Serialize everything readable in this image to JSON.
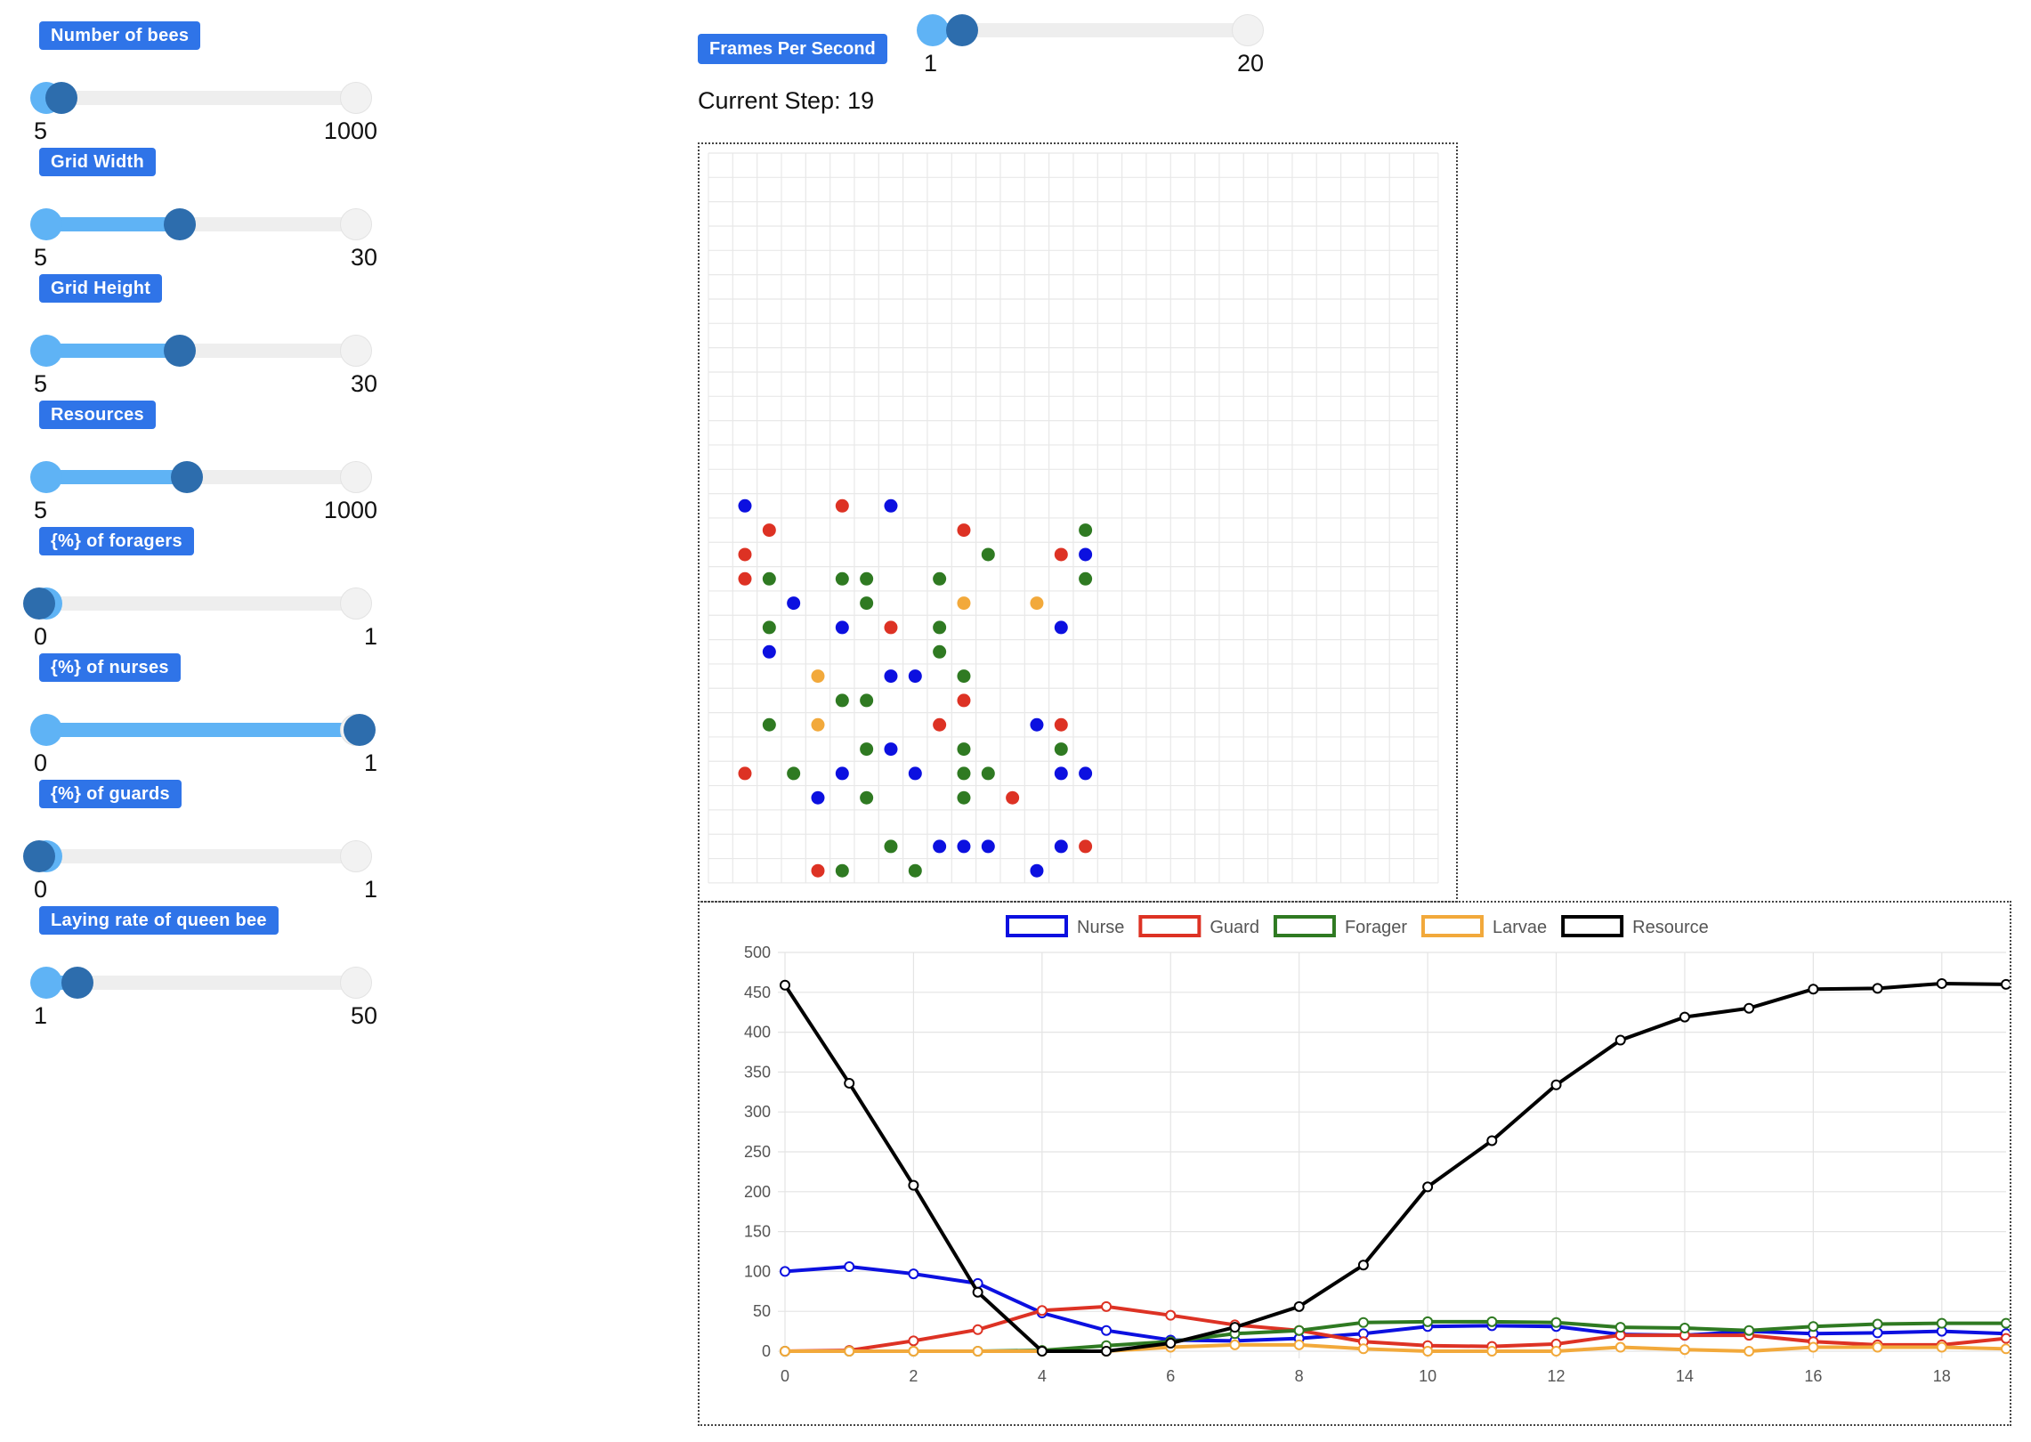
{
  "controls": [
    {
      "id": "bees",
      "label": "Number of bees",
      "min": "5",
      "max": "1000",
      "fraction": 0.07
    },
    {
      "id": "width",
      "label": "Grid Width",
      "min": "5",
      "max": "30",
      "fraction": 0.44
    },
    {
      "id": "height",
      "label": "Grid Height",
      "min": "5",
      "max": "30",
      "fraction": 0.44
    },
    {
      "id": "res",
      "label": "Resources",
      "min": "5",
      "max": "1000",
      "fraction": 0.46
    },
    {
      "id": "forag",
      "label": "{%} of foragers",
      "min": "0",
      "max": "1",
      "fraction": 0.0
    },
    {
      "id": "nurse",
      "label": "{%} of nurses",
      "min": "0",
      "max": "1",
      "fraction": 1.0
    },
    {
      "id": "guard",
      "label": "{%} of guards",
      "min": "0",
      "max": "1",
      "fraction": 0.0
    },
    {
      "id": "laying",
      "label": "Laying rate of queen bee",
      "min": "1",
      "max": "50",
      "fraction": 0.12
    }
  ],
  "fps": {
    "label": "Frames Per Second",
    "min": "1",
    "max": "20",
    "fraction": 0.1
  },
  "status": {
    "current_step": "Current Step: 19"
  },
  "colors": {
    "nurse": "#0c10e0",
    "guard": "#dd3224",
    "forager": "#2f7a22",
    "larvae": "#f2a93b",
    "resource": "#000000"
  },
  "grid": {
    "cols": 30,
    "rows": 30,
    "bees": [
      {
        "c": 1,
        "r": 14,
        "t": "nurse"
      },
      {
        "c": 5,
        "r": 14,
        "t": "guard"
      },
      {
        "c": 7,
        "r": 14,
        "t": "nurse"
      },
      {
        "c": 2,
        "r": 15,
        "t": "guard"
      },
      {
        "c": 10,
        "r": 15,
        "t": "guard"
      },
      {
        "c": 15,
        "r": 15,
        "t": "forager"
      },
      {
        "c": 1,
        "r": 16,
        "t": "guard"
      },
      {
        "c": 11,
        "r": 16,
        "t": "forager"
      },
      {
        "c": 14,
        "r": 16,
        "t": "guard"
      },
      {
        "c": 15,
        "r": 16,
        "t": "nurse"
      },
      {
        "c": 1,
        "r": 17,
        "t": "guard"
      },
      {
        "c": 2,
        "r": 17,
        "t": "forager"
      },
      {
        "c": 5,
        "r": 17,
        "t": "forager"
      },
      {
        "c": 6,
        "r": 17,
        "t": "forager"
      },
      {
        "c": 9,
        "r": 17,
        "t": "forager"
      },
      {
        "c": 15,
        "r": 17,
        "t": "forager"
      },
      {
        "c": 3,
        "r": 18,
        "t": "nurse"
      },
      {
        "c": 6,
        "r": 18,
        "t": "forager"
      },
      {
        "c": 10,
        "r": 18,
        "t": "larvae"
      },
      {
        "c": 13,
        "r": 18,
        "t": "larvae"
      },
      {
        "c": 2,
        "r": 19,
        "t": "forager"
      },
      {
        "c": 5,
        "r": 19,
        "t": "nurse"
      },
      {
        "c": 7,
        "r": 19,
        "t": "guard"
      },
      {
        "c": 9,
        "r": 19,
        "t": "forager"
      },
      {
        "c": 14,
        "r": 19,
        "t": "nurse"
      },
      {
        "c": 2,
        "r": 20,
        "t": "nurse"
      },
      {
        "c": 9,
        "r": 20,
        "t": "forager"
      },
      {
        "c": 4,
        "r": 21,
        "t": "larvae"
      },
      {
        "c": 7,
        "r": 21,
        "t": "nurse"
      },
      {
        "c": 8,
        "r": 21,
        "t": "nurse"
      },
      {
        "c": 10,
        "r": 21,
        "t": "forager"
      },
      {
        "c": 5,
        "r": 22,
        "t": "forager"
      },
      {
        "c": 6,
        "r": 22,
        "t": "forager"
      },
      {
        "c": 10,
        "r": 22,
        "t": "guard"
      },
      {
        "c": 2,
        "r": 23,
        "t": "forager"
      },
      {
        "c": 4,
        "r": 23,
        "t": "larvae"
      },
      {
        "c": 9,
        "r": 23,
        "t": "guard"
      },
      {
        "c": 13,
        "r": 23,
        "t": "nurse"
      },
      {
        "c": 14,
        "r": 23,
        "t": "guard"
      },
      {
        "c": 6,
        "r": 24,
        "t": "forager"
      },
      {
        "c": 7,
        "r": 24,
        "t": "nurse"
      },
      {
        "c": 10,
        "r": 24,
        "t": "forager"
      },
      {
        "c": 14,
        "r": 24,
        "t": "forager"
      },
      {
        "c": 1,
        "r": 25,
        "t": "guard"
      },
      {
        "c": 3,
        "r": 25,
        "t": "forager"
      },
      {
        "c": 5,
        "r": 25,
        "t": "nurse"
      },
      {
        "c": 8,
        "r": 25,
        "t": "nurse"
      },
      {
        "c": 10,
        "r": 25,
        "t": "forager"
      },
      {
        "c": 11,
        "r": 25,
        "t": "forager"
      },
      {
        "c": 14,
        "r": 25,
        "t": "nurse"
      },
      {
        "c": 15,
        "r": 25,
        "t": "nurse"
      },
      {
        "c": 4,
        "r": 26,
        "t": "nurse"
      },
      {
        "c": 6,
        "r": 26,
        "t": "forager"
      },
      {
        "c": 10,
        "r": 26,
        "t": "forager"
      },
      {
        "c": 12,
        "r": 26,
        "t": "guard"
      },
      {
        "c": 7,
        "r": 28,
        "t": "forager"
      },
      {
        "c": 9,
        "r": 28,
        "t": "nurse"
      },
      {
        "c": 10,
        "r": 28,
        "t": "nurse"
      },
      {
        "c": 11,
        "r": 28,
        "t": "nurse"
      },
      {
        "c": 14,
        "r": 28,
        "t": "nurse"
      },
      {
        "c": 15,
        "r": 28,
        "t": "guard"
      },
      {
        "c": 4,
        "r": 29,
        "t": "guard"
      },
      {
        "c": 5,
        "r": 29,
        "t": "forager"
      },
      {
        "c": 8,
        "r": 29,
        "t": "forager"
      },
      {
        "c": 13,
        "r": 29,
        "t": "nurse"
      }
    ]
  },
  "chart_data": {
    "type": "line",
    "x": [
      0,
      1,
      2,
      3,
      4,
      5,
      6,
      7,
      8,
      9,
      10,
      11,
      12,
      13,
      14,
      15,
      16,
      17,
      18,
      19
    ],
    "x_ticks": [
      "0",
      "2",
      "4",
      "6",
      "8",
      "10",
      "12",
      "14",
      "16",
      "18"
    ],
    "y_ticks": [
      "0",
      "50",
      "100",
      "150",
      "200",
      "250",
      "300",
      "350",
      "400",
      "450",
      "500"
    ],
    "ylim": [
      0,
      500
    ],
    "xlim": [
      0,
      19
    ],
    "grid": true,
    "legend_position": "top",
    "series": [
      {
        "name": "Nurse",
        "color": "#0c10e0",
        "values": [
          100,
          106,
          97,
          85,
          48,
          26,
          14,
          13,
          16,
          22,
          31,
          32,
          31,
          21,
          20,
          25,
          22,
          23,
          25,
          22
        ]
      },
      {
        "name": "Guard",
        "color": "#dd3224",
        "values": [
          0,
          1,
          13,
          27,
          51,
          56,
          45,
          33,
          26,
          12,
          7,
          6,
          9,
          20,
          20,
          20,
          12,
          8,
          8,
          16
        ]
      },
      {
        "name": "Forager",
        "color": "#2f7a22",
        "values": [
          0,
          0,
          0,
          0,
          1,
          7,
          12,
          22,
          26,
          36,
          37,
          37,
          36,
          30,
          29,
          26,
          31,
          34,
          35,
          35
        ]
      },
      {
        "name": "Larvae",
        "color": "#f2a93b",
        "values": [
          0,
          0,
          0,
          0,
          0,
          0,
          5,
          8,
          8,
          3,
          0,
          0,
          0,
          5,
          2,
          0,
          5,
          5,
          5,
          3
        ]
      },
      {
        "name": "Resource",
        "color": "#000000",
        "values": [
          459,
          336,
          208,
          74,
          0,
          0,
          10,
          30,
          56,
          108,
          206,
          264,
          334,
          390,
          419,
          430,
          454,
          455,
          461,
          460
        ]
      }
    ]
  }
}
